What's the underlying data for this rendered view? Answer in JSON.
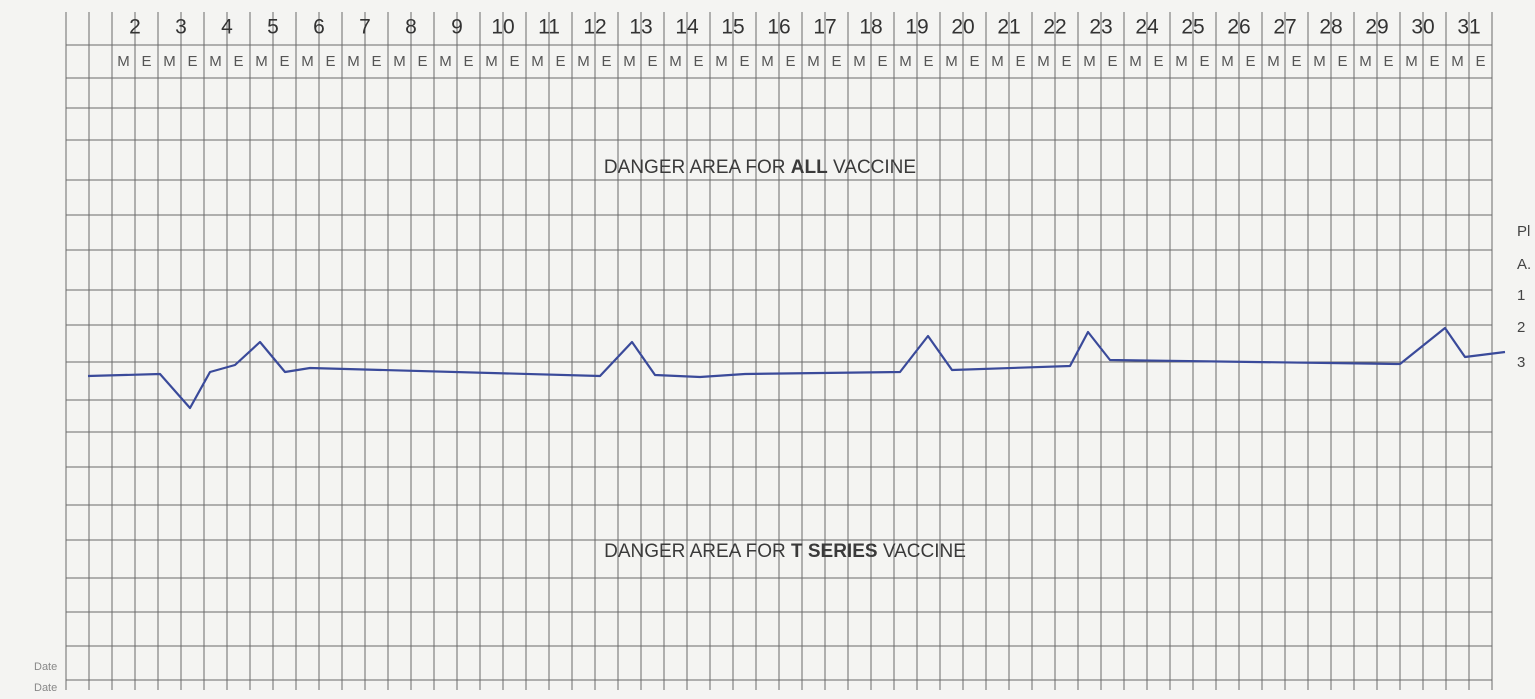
{
  "header": {
    "days": [
      2,
      3,
      4,
      5,
      6,
      7,
      8,
      9,
      10,
      11,
      12,
      13,
      14,
      15,
      16,
      17,
      18,
      19,
      20,
      21,
      22,
      23,
      24,
      25,
      26,
      27,
      28,
      29,
      30,
      31
    ],
    "shift_labels": [
      "M",
      "E"
    ]
  },
  "zones": {
    "all_vaccine": [
      "DANGER AREA FOR ",
      "ALL",
      " VACCINE"
    ],
    "t_series_vaccine": [
      "DANGER AREA FOR ",
      "T SERIES",
      " VACCINE"
    ]
  },
  "right_margin": [
    "Pl",
    "A.",
    "1",
    "2",
    "3"
  ],
  "left_margin": [
    "Date",
    "Date"
  ]
}
